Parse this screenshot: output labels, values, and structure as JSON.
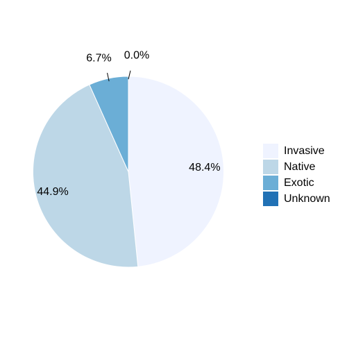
{
  "chart_data": {
    "type": "pie",
    "categories": [
      "Invasive",
      "Native",
      "Exotic",
      "Unknown"
    ],
    "values": [
      48.4,
      44.9,
      6.7,
      0.0
    ],
    "labels": [
      "48.4%",
      "44.9%",
      "6.7%",
      "0.0%"
    ],
    "colors": [
      "#eff3ff",
      "#bdd7e7",
      "#6baed6",
      "#2171b5"
    ],
    "start_angle": "12 o'clock",
    "direction": "clockwise",
    "legend_position": "right"
  }
}
